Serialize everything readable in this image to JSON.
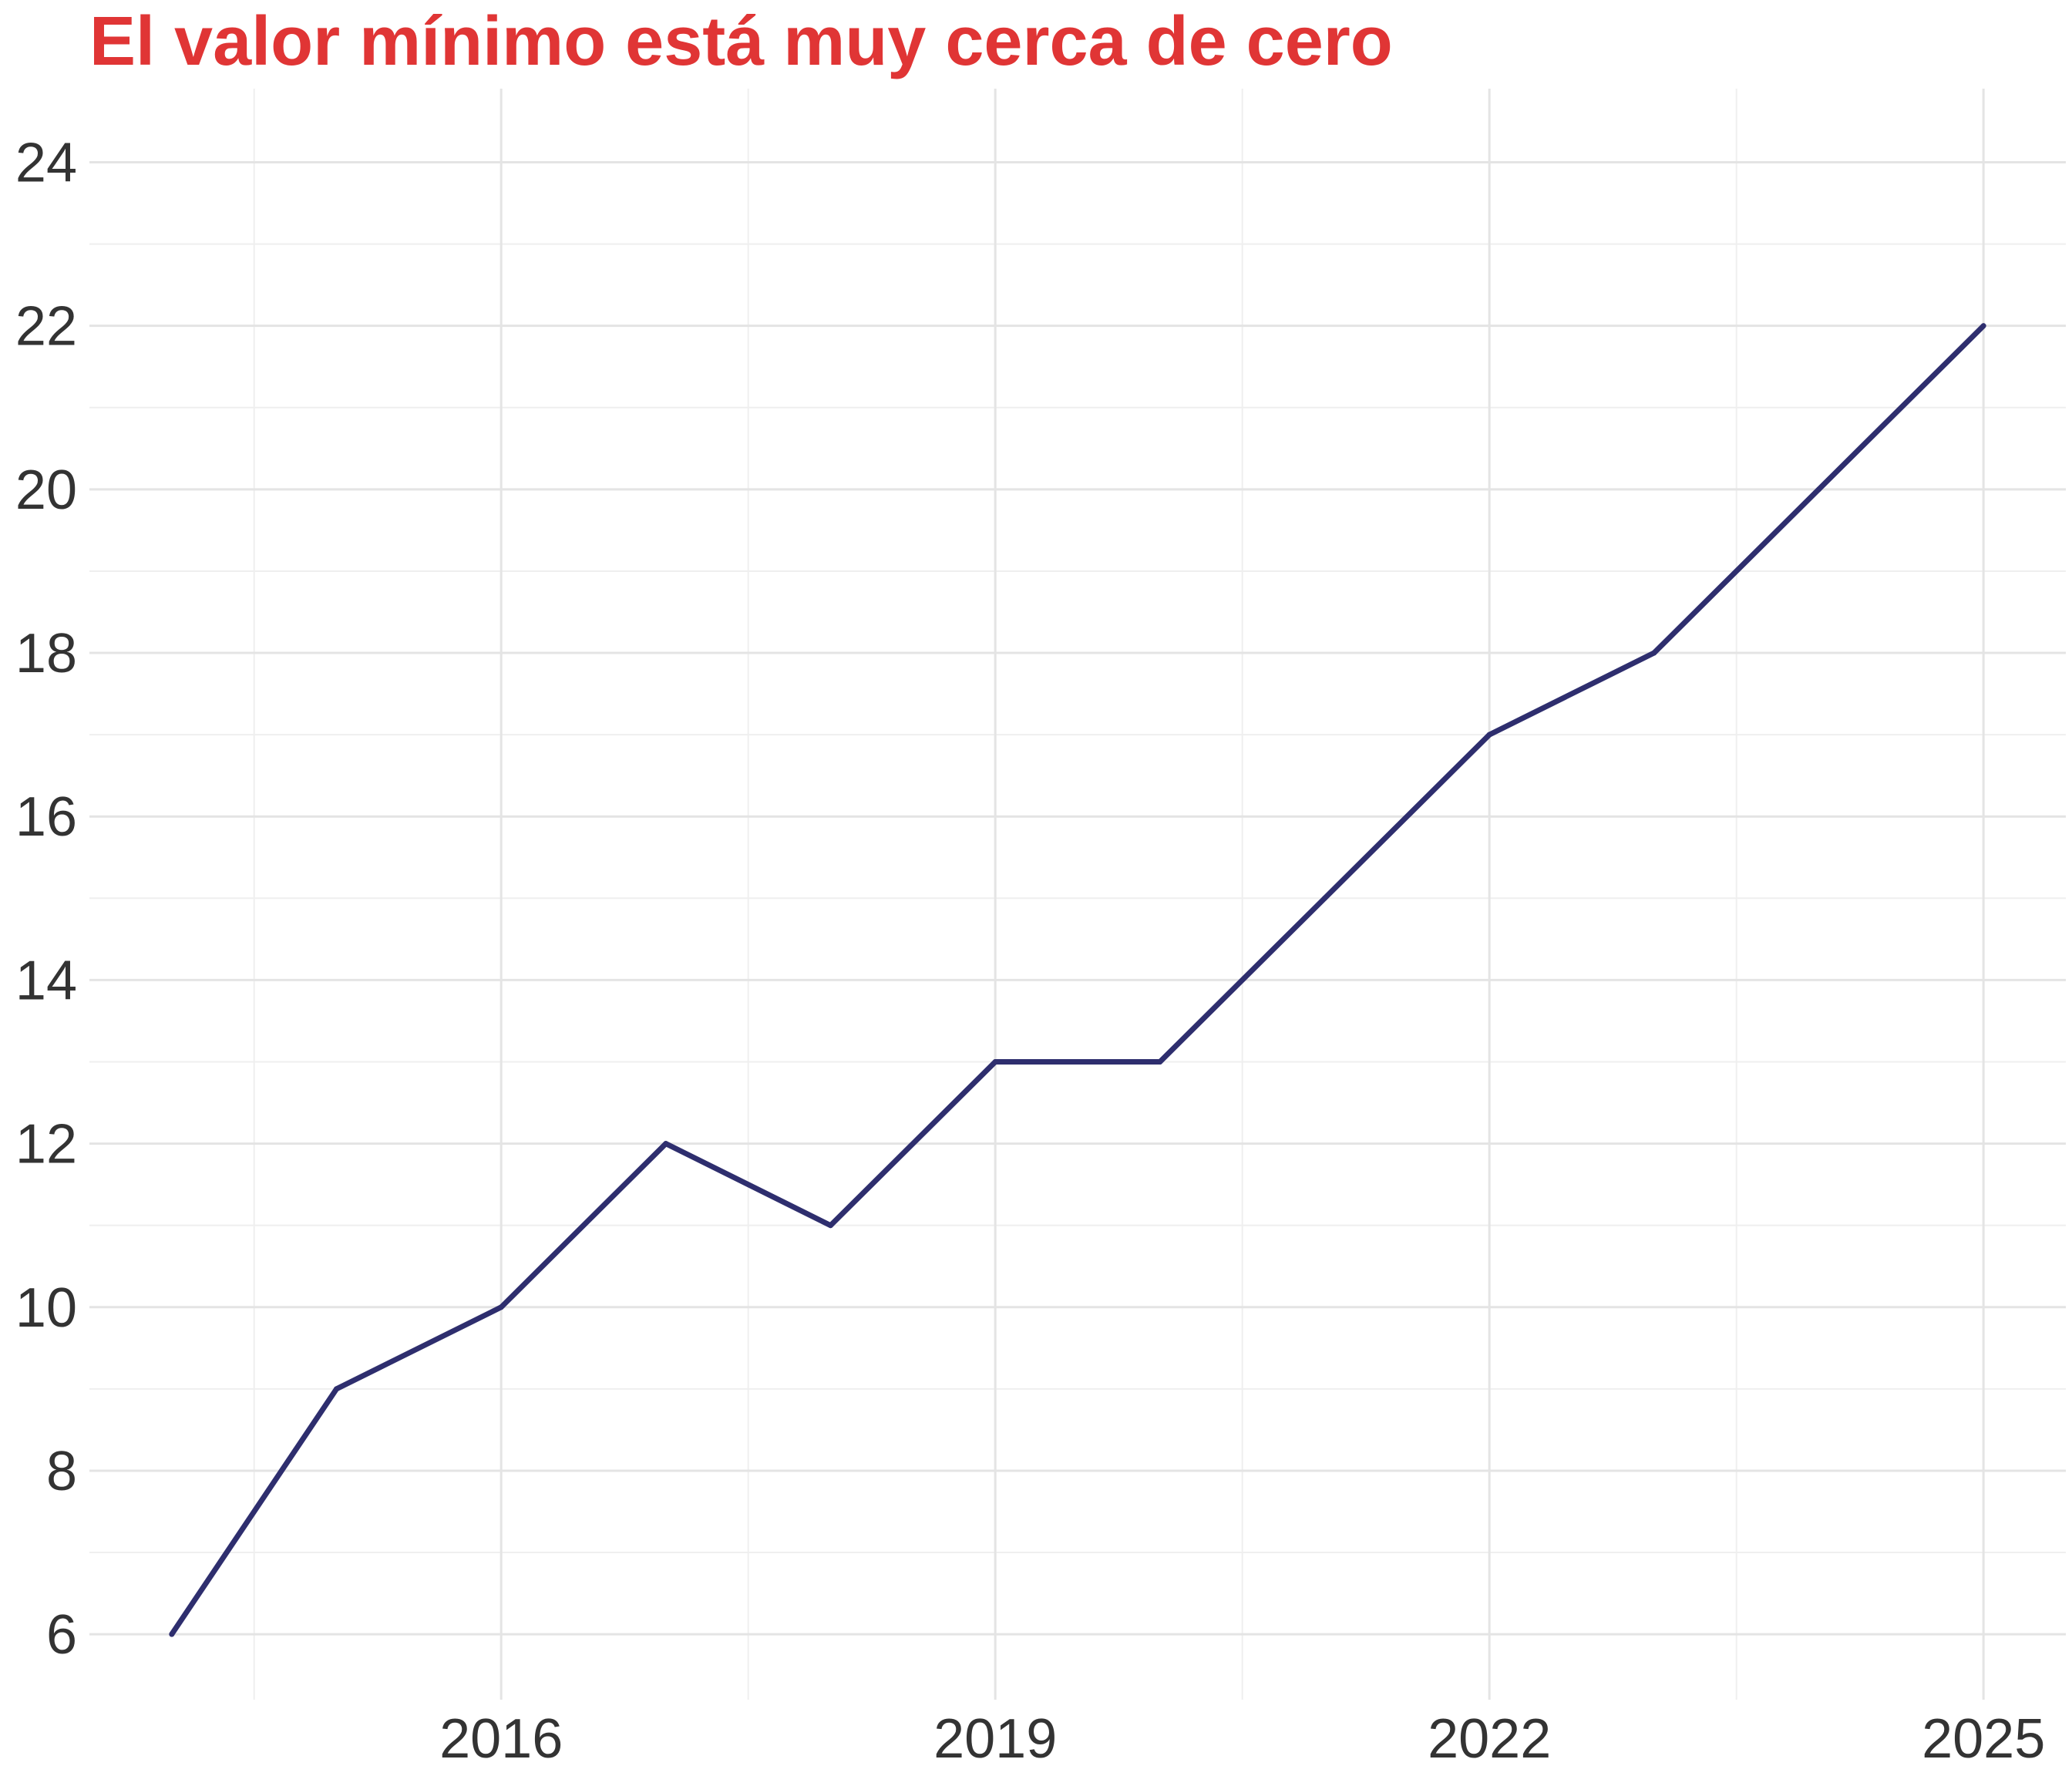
{
  "colors": {
    "title": "#e03535",
    "line": "#2e2e6e",
    "grid_major": "#e4e4e4",
    "grid_minor": "#efefef",
    "tick_text": "#333333",
    "background": "#ffffff"
  },
  "chart_data": {
    "type": "line",
    "title": "El valor mínimo está muy cerca de cero",
    "xlabel": "",
    "ylabel": "",
    "xlim": [
      2013.5,
      2025.5
    ],
    "ylim": [
      5.2,
      24.9
    ],
    "x_ticks": [
      2016,
      2019,
      2022,
      2025
    ],
    "x_minor_ticks": [
      2014.5,
      2017.5,
      2020.5,
      2023.5
    ],
    "y_ticks": [
      6,
      8,
      10,
      12,
      14,
      16,
      18,
      20,
      22,
      24
    ],
    "y_minor_ticks": [
      7,
      9,
      11,
      13,
      15,
      17,
      19,
      21,
      23
    ],
    "grid": true,
    "legend": "none",
    "series": [
      {
        "x": [
          2014,
          2015,
          2016,
          2017,
          2018,
          2019,
          2020,
          2021,
          2022,
          2023,
          2024,
          2025
        ],
        "y": [
          6,
          9,
          10,
          12,
          11,
          13,
          13,
          15,
          17,
          18,
          20,
          22
        ]
      }
    ]
  }
}
